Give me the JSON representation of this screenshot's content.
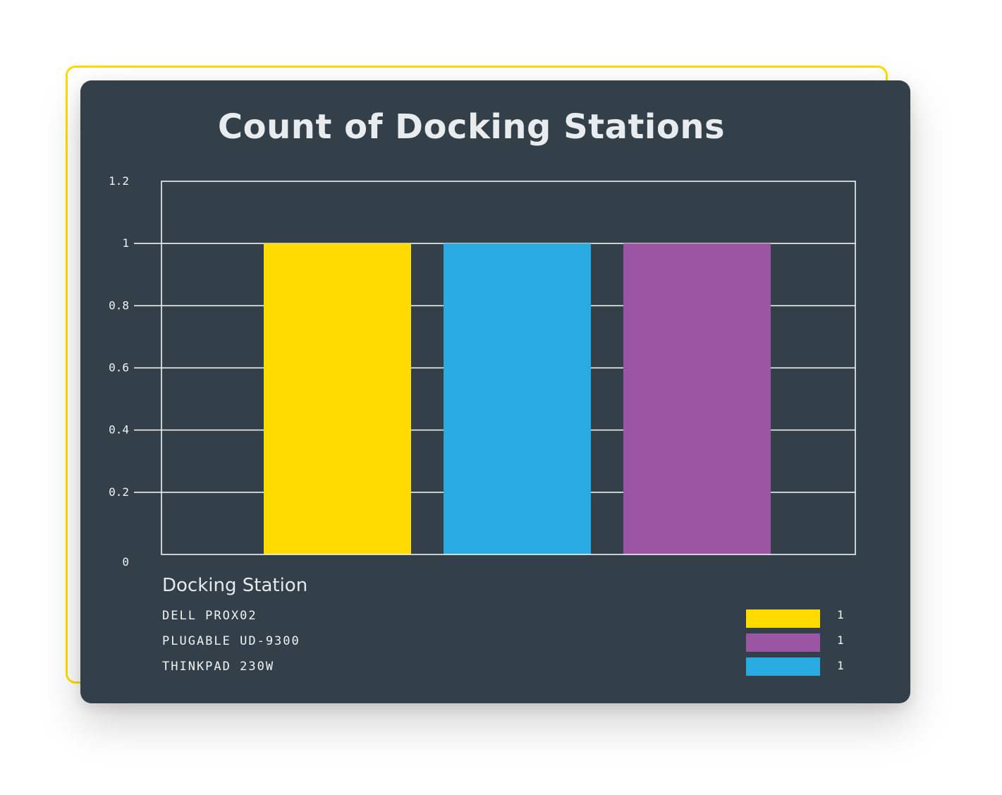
{
  "chart_data": {
    "type": "bar",
    "title": "Count of Docking Stations",
    "categories": [
      "Dell ProX02",
      "ThinkPad 230W",
      "Plugable UD-9300"
    ],
    "values": [
      1,
      1,
      1
    ],
    "colors": [
      "#FFDB00",
      "#29ABE2",
      "#9B56A3"
    ],
    "yticks": [
      "0",
      "0.2",
      "0.4",
      "0.6",
      "0.8",
      "1",
      "1.2"
    ],
    "ylim": [
      0,
      1.2
    ],
    "grid": true,
    "legend_position": "bottom",
    "legend": {
      "title": "Docking Station",
      "items": [
        {
          "name": "DELL PROX02",
          "value": "1",
          "color": "#FFDB00"
        },
        {
          "name": "PLUGABLE UD-9300",
          "value": "1",
          "color": "#9B56A3"
        },
        {
          "name": "THINKPAD 230W",
          "value": "1",
          "color": "#29ABE2"
        }
      ]
    }
  },
  "theme": {
    "card_background": "#333F49",
    "accent": "#FFDB00",
    "grid": "#FFFFFF"
  }
}
